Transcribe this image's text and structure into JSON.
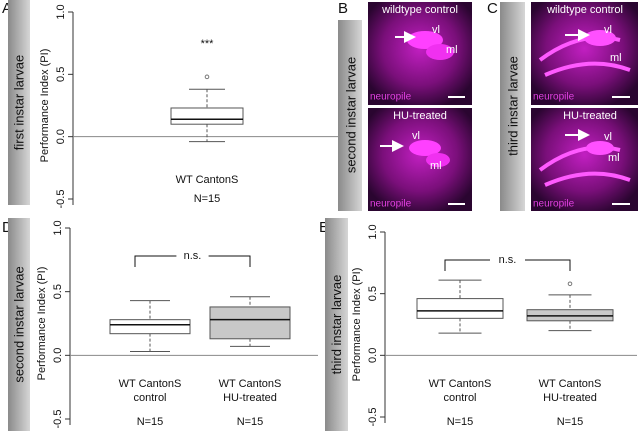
{
  "chart_data": [
    {
      "type": "box",
      "panel_label": "A",
      "side_label": "first instar larvae",
      "y_label": "Performance Index (PI)",
      "ylim": [
        -0.5,
        1.0
      ],
      "yticks": [
        -0.5,
        {
          "value": 0,
          "label": "0.0"
        },
        0.5,
        {
          "value": 1,
          "label": "1.0"
        }
      ],
      "reference_line": 0,
      "categories": [
        [
          "WT CantonS"
        ]
      ],
      "sample_sizes": [
        "N=15"
      ],
      "boxes": [
        {
          "min": -0.04,
          "q1": 0.1,
          "median": 0.14,
          "q3": 0.23,
          "max": 0.38,
          "outliers": [
            0.48
          ]
        }
      ],
      "annotation": "***",
      "colors": [
        "#ffffff"
      ]
    },
    {
      "type": "box",
      "panel_label": "D",
      "side_label": "second instar larvae",
      "y_label": "Performance Index (PI)",
      "ylim": [
        -0.5,
        1.0
      ],
      "yticks": [
        -0.5,
        {
          "value": 0,
          "label": "0.0"
        },
        0.5,
        {
          "value": 1,
          "label": "1.0"
        }
      ],
      "reference_line": 0,
      "categories": [
        [
          "WT CantonS",
          "control"
        ],
        [
          "WT CantonS",
          "HU-treated"
        ]
      ],
      "sample_sizes": [
        "N=15",
        "N=15"
      ],
      "boxes": [
        {
          "min": 0.03,
          "q1": 0.17,
          "median": 0.24,
          "q3": 0.28,
          "max": 0.43,
          "outliers": []
        },
        {
          "min": 0.07,
          "q1": 0.13,
          "median": 0.28,
          "q3": 0.38,
          "max": 0.46,
          "outliers": []
        }
      ],
      "significance": "n.s.",
      "colors": [
        "#ffffff",
        "#c8c8c8"
      ]
    },
    {
      "type": "box",
      "panel_label": "E",
      "side_label": "third instar larvae",
      "y_label": "Performance Index (PI)",
      "ylim": [
        -0.5,
        1.0
      ],
      "yticks": [
        -0.5,
        {
          "value": 0,
          "label": "0.0"
        },
        0.5,
        {
          "value": 1,
          "label": "1.0"
        }
      ],
      "reference_line": 0,
      "categories": [
        [
          "WT CantonS",
          "control"
        ],
        [
          "WT CantonS",
          "HU-treated"
        ]
      ],
      "sample_sizes": [
        "N=15",
        "N=15"
      ],
      "boxes": [
        {
          "min": 0.18,
          "q1": 0.3,
          "median": 0.36,
          "q3": 0.46,
          "max": 0.61,
          "outliers": []
        },
        {
          "min": 0.2,
          "q1": 0.28,
          "median": 0.32,
          "q3": 0.37,
          "max": 0.49,
          "outliers": [
            0.58
          ]
        }
      ],
      "significance": "n.s.",
      "colors": [
        "#ffffff",
        "#c8c8c8"
      ]
    }
  ],
  "image_panels": [
    {
      "label": "B",
      "side_label": "second instar larvae",
      "images": [
        {
          "caption": "wildtype control",
          "labels": [
            "vl",
            "ml"
          ],
          "stain": "neuropile"
        },
        {
          "caption": "HU-treated",
          "labels": [
            "vl",
            "ml"
          ],
          "stain": "neuropile"
        }
      ]
    },
    {
      "label": "C",
      "side_label": "third instar larvae",
      "images": [
        {
          "caption": "wildtype control",
          "labels": [
            "vl",
            "ml"
          ],
          "stain": "neuropile"
        },
        {
          "caption": "HU-treated",
          "labels": [
            "vl",
            "ml"
          ],
          "stain": "neuropile"
        }
      ]
    }
  ]
}
